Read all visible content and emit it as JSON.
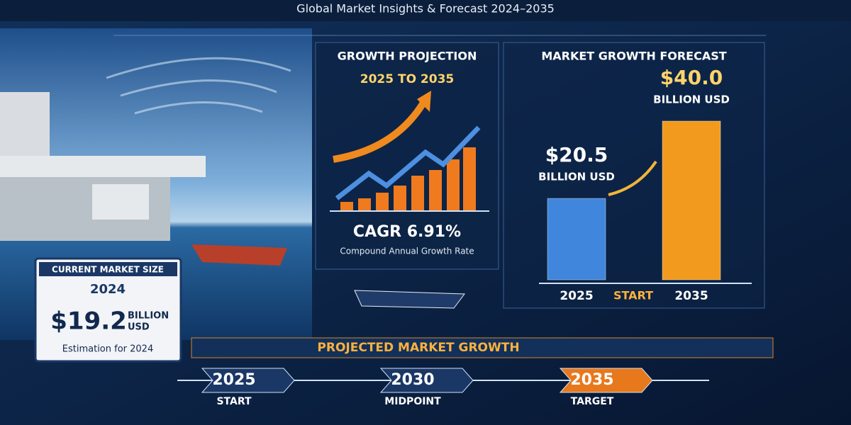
{
  "header": {
    "title": "Global Market Insights & Forecast 2024–2035"
  },
  "growth_projection": {
    "title": "GROWTH PROJECTION",
    "period": "2025 TO 2035",
    "cagr": "CAGR 6.91%",
    "cagr_caption": "Compound Annual Growth Rate"
  },
  "current_market": {
    "title": "CURRENT MARKET SIZE",
    "year": "2024",
    "value": "$19.2",
    "unit_line1": "BILLION",
    "unit_line2": "USD",
    "caption": "Estimation for 2024"
  },
  "chart_data": {
    "type": "bar",
    "title": "MARKET GROWTH FORECAST",
    "categories": [
      "2025",
      "2035"
    ],
    "values": [
      20.5,
      40.0
    ],
    "value_labels": [
      "$20.5",
      "$40.0"
    ],
    "unit_labels": [
      "BILLION USD",
      "BILLION USD"
    ],
    "colors": [
      "#3f86dc",
      "#f29a1e"
    ],
    "annotation": "START"
  },
  "timeline": {
    "title": "PROJECTED MARKET GROWTH",
    "steps": [
      {
        "year": "2025",
        "label": "START"
      },
      {
        "year": "2030",
        "label": "MIDPOINT"
      },
      {
        "year": "2035",
        "label": "TARGET"
      }
    ]
  }
}
